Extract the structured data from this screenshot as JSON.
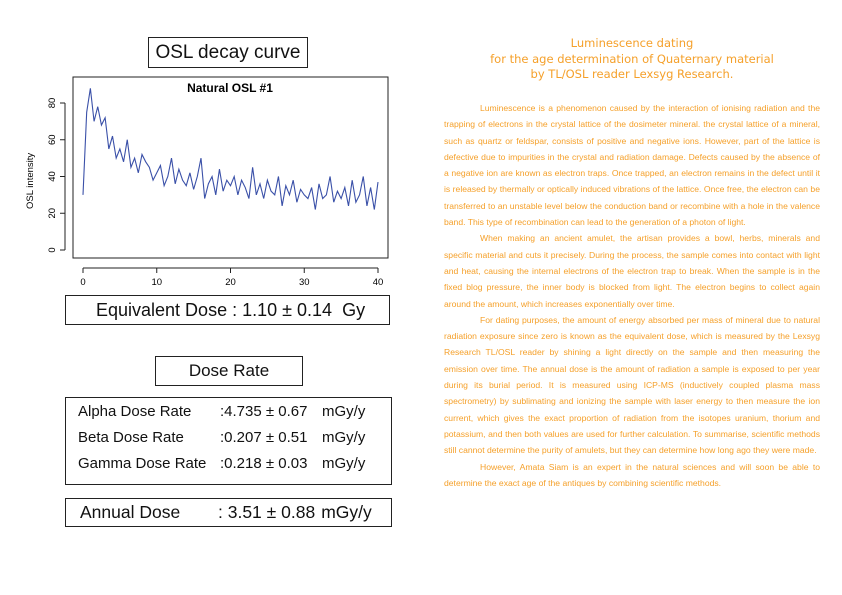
{
  "title": "OSL decay curve",
  "equivalent_dose": {
    "label": "Equivalent Dose",
    "value": ": 1.10 ± 0.14",
    "unit": "Gy"
  },
  "dose_rate": {
    "title": "Dose Rate",
    "rows": [
      {
        "label": "Alpha Dose Rate",
        "value": ":4.735 ± 0.67",
        "unit": "mGy/y"
      },
      {
        "label": "Beta Dose Rate",
        "value": ":0.207 ± 0.51",
        "unit": "mGy/y"
      },
      {
        "label": "Gamma Dose Rate",
        "value": ":0.218 ± 0.03",
        "unit": "mGy/y"
      }
    ]
  },
  "annual_dose": {
    "label": "Annual Dose",
    "value": ": 3.51 ± 0.88",
    "unit": "mGy/y"
  },
  "heading": [
    "Luminescence dating",
    "for the age determination of Quaternary material",
    "by TL/OSL reader Lexsyg Research."
  ],
  "paragraphs": [
    "Luminescence is a phenomenon caused by the interaction of ionising radiation and the trapping of electrons in the crystal lattice of the dosimeter mineral. the crystal lattice of a mineral, such as quartz or feldspar, consists of positive and negative ions. However, part of the lattice is defective due to impurities in the crystal and radiation damage. Defects caused by the absence of a negative ion are known as electron traps. Once trapped, an electron remains in the defect until it is released by thermally or optically induced vibrations of the lattice. Once free, the electron can be transferred to an unstable level below the conduction band or recombine with a hole in the valence band. This type of recombination can lead to the generation of a photon of light.",
    "When making an ancient amulet, the artisan provides a bowl, herbs, minerals and specific material and cuts it precisely. During the process, the sample comes into contact with light and heat, causing the internal electrons of the electron trap to break. When the sample is in the fixed blog pressure, the inner body is blocked from light. The electron begins to collect again around the amount, which increases exponentially over time.",
    "For dating purposes, the amount of energy absorbed per mass of mineral due to natural radiation exposure since zero is known as the equivalent dose, which is measured by the Lexsyg Research TL/OSL reader by shining a light directly on the sample and then measuring the emission over time. The annual dose is the amount of radiation a sample is exposed to per year during its burial period. It is measured using ICP-MS (inductively coupled plasma mass spectrometry) by sublimating and ionizing the sample with laser energy to then measure the ion current, which gives the exact proportion of radiation from the isotopes uranium, thorium and potassium, and then both values are used for further calculation. To summarise, scientific methods still cannot determine the purity of amulets, but they can determine how long ago they were made.",
    "However, Amata Siam is an expert in the natural sciences and will soon be able to determine the exact age of the antiques by combining scientific methods."
  ],
  "chart_data": {
    "type": "line",
    "title": "Natural OSL #1",
    "xlabel": "",
    "ylabel": "OSL intensity",
    "xlim": [
      0,
      40
    ],
    "ylim": [
      0,
      90
    ],
    "xticks": [
      0,
      10,
      20,
      30,
      40
    ],
    "yticks": [
      0,
      20,
      40,
      60,
      80
    ],
    "grid": false,
    "line_color": "#3a50a8",
    "x": [
      0,
      0.5,
      1,
      1.5,
      2,
      2.5,
      3,
      3.5,
      4,
      4.5,
      5,
      5.5,
      6,
      6.5,
      7,
      7.5,
      8,
      8.5,
      9,
      9.5,
      10,
      10.5,
      11,
      11.5,
      12,
      12.5,
      13,
      13.5,
      14,
      14.5,
      15,
      15.5,
      16,
      16.5,
      17,
      17.5,
      18,
      18.5,
      19,
      19.5,
      20,
      20.5,
      21,
      21.5,
      22,
      22.5,
      23,
      23.5,
      24,
      24.5,
      25,
      25.5,
      26,
      26.5,
      27,
      27.5,
      28,
      28.5,
      29,
      29.5,
      30,
      30.5,
      31,
      31.5,
      32,
      32.5,
      33,
      33.5,
      34,
      34.5,
      35,
      35.5,
      36,
      36.5,
      37,
      37.5,
      38,
      38.5,
      39,
      39.5,
      40
    ],
    "y": [
      30,
      75,
      88,
      70,
      78,
      68,
      72,
      55,
      62,
      50,
      55,
      48,
      60,
      45,
      50,
      42,
      52,
      48,
      45,
      38,
      42,
      46,
      35,
      40,
      50,
      36,
      44,
      38,
      35,
      42,
      33,
      40,
      50,
      28,
      36,
      40,
      30,
      44,
      32,
      38,
      35,
      40,
      30,
      38,
      34,
      28,
      45,
      30,
      36,
      28,
      38,
      32,
      30,
      40,
      24,
      35,
      30,
      38,
      26,
      33,
      30,
      28,
      34,
      22,
      36,
      28,
      30,
      40,
      26,
      32,
      28,
      34,
      24,
      38,
      26,
      30,
      40,
      24,
      34,
      22,
      37
    ]
  }
}
